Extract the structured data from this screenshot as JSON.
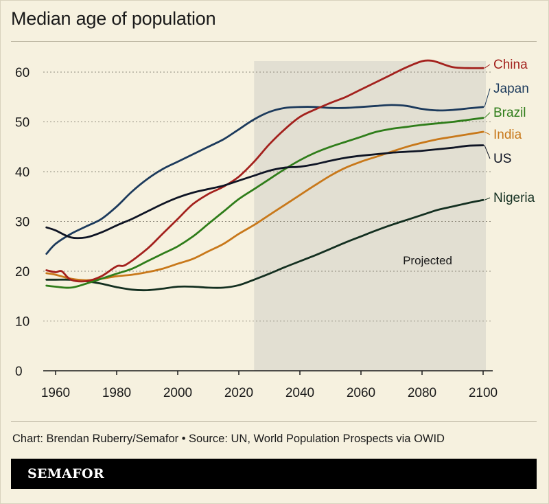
{
  "header": {
    "title": "Median age of population"
  },
  "footer": {
    "caption": "Chart: Brendan Ruberry/Semafor • Source: UN, World Population Prospects via OWID",
    "brand": "SEMAFOR"
  },
  "chart_data": {
    "type": "line",
    "title": "Median age of population",
    "xlabel": "",
    "ylabel": "",
    "xlim": [
      1950,
      2100
    ],
    "ylim": [
      0,
      65
    ],
    "x_ticks": [
      1960,
      1980,
      2000,
      2020,
      2040,
      2060,
      2080,
      2100
    ],
    "y_ticks": [
      0,
      10,
      20,
      30,
      40,
      50,
      60
    ],
    "grid": "horizontal dotted",
    "annotation": {
      "label": "Projected",
      "x_start": 2025,
      "x_end": 2100
    },
    "legend": "labels at line ends, right",
    "series": [
      {
        "name": "China",
        "color": "#a3211d",
        "x": [
          1957,
          1960,
          1962,
          1965,
          1970,
          1975,
          1980,
          1983,
          1990,
          1995,
          2000,
          2005,
          2010,
          2015,
          2020,
          2025,
          2030,
          2035,
          2040,
          2045,
          2050,
          2055,
          2060,
          2065,
          2070,
          2075,
          2080,
          2083,
          2085,
          2090,
          2095,
          2100
        ],
        "y": [
          20.2,
          19.8,
          20,
          18.3,
          18,
          19,
          21,
          21.3,
          24.5,
          27.5,
          30.5,
          33.5,
          35.5,
          37,
          39,
          42,
          45.5,
          48.5,
          51,
          52.5,
          53.8,
          55,
          56.5,
          58,
          59.5,
          61,
          62.2,
          62.3,
          62,
          61,
          60.8,
          60.8
        ]
      },
      {
        "name": "Japan",
        "color": "#1c3a5c",
        "x": [
          1957,
          1960,
          1965,
          1970,
          1975,
          1980,
          1985,
          1990,
          1995,
          2000,
          2005,
          2010,
          2015,
          2020,
          2025,
          2030,
          2035,
          2040,
          2045,
          2050,
          2055,
          2060,
          2065,
          2070,
          2075,
          2080,
          2085,
          2090,
          2095,
          2100
        ],
        "y": [
          23.5,
          25.5,
          27.5,
          29,
          30.5,
          33,
          36,
          38.5,
          40.5,
          42,
          43.5,
          45,
          46.5,
          48.5,
          50.5,
          52,
          52.8,
          53,
          53,
          52.8,
          52.8,
          53,
          53.2,
          53.4,
          53.2,
          52.6,
          52.3,
          52.4,
          52.7,
          53
        ]
      },
      {
        "name": "Brazil",
        "color": "#2f7d1a",
        "x": [
          1957,
          1960,
          1965,
          1970,
          1975,
          1980,
          1985,
          1990,
          1995,
          2000,
          2005,
          2010,
          2015,
          2020,
          2025,
          2030,
          2035,
          2040,
          2045,
          2050,
          2055,
          2060,
          2065,
          2070,
          2075,
          2080,
          2085,
          2090,
          2095,
          2100
        ],
        "y": [
          17.1,
          16.9,
          16.7,
          17.5,
          18.5,
          19.5,
          20.5,
          22,
          23.5,
          25,
          27,
          29.5,
          32,
          34.5,
          36.5,
          38.5,
          40.5,
          42.3,
          43.8,
          45,
          46,
          47,
          48,
          48.6,
          49,
          49.4,
          49.7,
          50,
          50.4,
          50.8
        ]
      },
      {
        "name": "India",
        "color": "#c8781a",
        "x": [
          1957,
          1960,
          1965,
          1970,
          1975,
          1980,
          1985,
          1990,
          1995,
          2000,
          2005,
          2010,
          2015,
          2020,
          2025,
          2030,
          2035,
          2040,
          2045,
          2050,
          2055,
          2060,
          2065,
          2070,
          2075,
          2080,
          2085,
          2090,
          2095,
          2100
        ],
        "y": [
          19.6,
          19.3,
          18.5,
          18.2,
          18.5,
          19,
          19.3,
          19.8,
          20.5,
          21.5,
          22.5,
          24,
          25.5,
          27.5,
          29.3,
          31.3,
          33.3,
          35.3,
          37.3,
          39.2,
          40.8,
          42,
          43,
          44,
          45,
          45.8,
          46.5,
          47,
          47.5,
          48
        ]
      },
      {
        "name": "US",
        "color": "#0e1424",
        "x": [
          1957,
          1960,
          1965,
          1970,
          1975,
          1980,
          1985,
          1990,
          1995,
          2000,
          2005,
          2010,
          2015,
          2020,
          2025,
          2030,
          2035,
          2040,
          2045,
          2050,
          2055,
          2060,
          2065,
          2070,
          2075,
          2080,
          2085,
          2090,
          2095,
          2100
        ],
        "y": [
          28.8,
          28.2,
          26.8,
          26.8,
          27.8,
          29.2,
          30.5,
          32,
          33.5,
          34.8,
          35.8,
          36.5,
          37.2,
          38.2,
          39.2,
          40.2,
          40.8,
          41,
          41.5,
          42.2,
          42.8,
          43.2,
          43.5,
          43.8,
          44,
          44.2,
          44.5,
          44.8,
          45.2,
          45.3
        ]
      },
      {
        "name": "Nigeria",
        "color": "#132f20",
        "x": [
          1957,
          1960,
          1965,
          1970,
          1975,
          1980,
          1985,
          1990,
          1995,
          2000,
          2005,
          2010,
          2015,
          2020,
          2025,
          2030,
          2035,
          2040,
          2045,
          2050,
          2055,
          2060,
          2065,
          2070,
          2075,
          2080,
          2085,
          2090,
          2095,
          2100
        ],
        "y": [
          18.3,
          18.3,
          18.3,
          18,
          17.5,
          16.8,
          16.3,
          16.2,
          16.5,
          16.9,
          16.9,
          16.7,
          16.7,
          17.2,
          18.3,
          19.5,
          20.8,
          22,
          23.2,
          24.5,
          25.8,
          27,
          28.2,
          29.3,
          30.3,
          31.3,
          32.3,
          33,
          33.7,
          34.3
        ]
      }
    ]
  }
}
